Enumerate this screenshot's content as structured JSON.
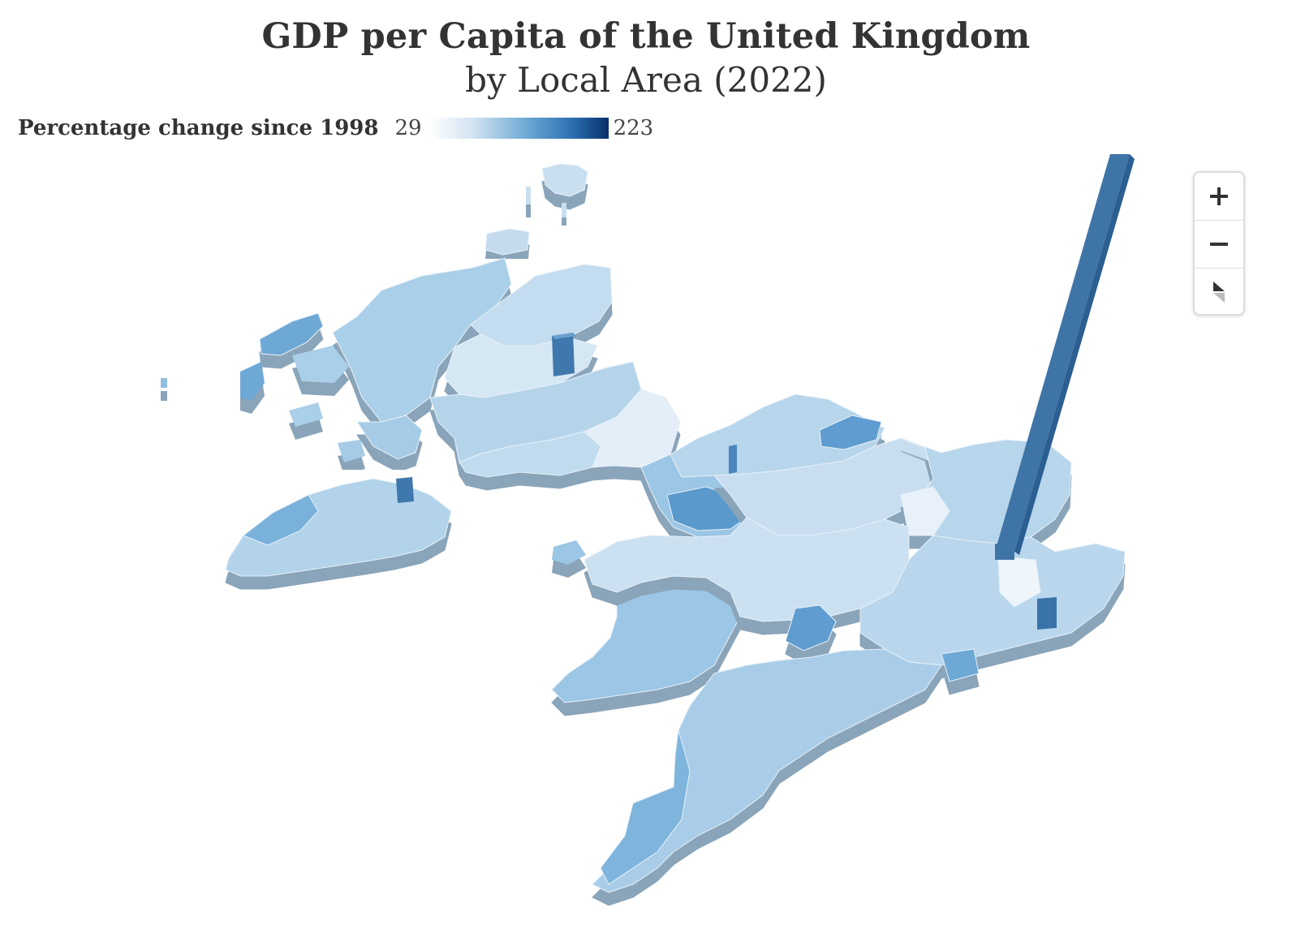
{
  "header": {
    "title": "GDP per Capita of the United Kingdom",
    "subtitle": "by Local Area (2022)"
  },
  "legend": {
    "title": "Percentage change since 1998",
    "min": "29",
    "max": "223",
    "colors": [
      "#ffffff",
      "#cfe2f1",
      "#6aa7d3",
      "#2a6fb0",
      "#08306b"
    ]
  },
  "controls": {
    "zoom_in_icon": "plus-icon",
    "zoom_out_icon": "minus-icon",
    "reset_icon": "compass-icon"
  },
  "colors": {
    "land_light": "#dcebf6",
    "land_mid": "#b9d6ec",
    "land_dark": "#8fbfe0",
    "side": "#9fb8cc",
    "spike": "#3f78ad"
  }
}
